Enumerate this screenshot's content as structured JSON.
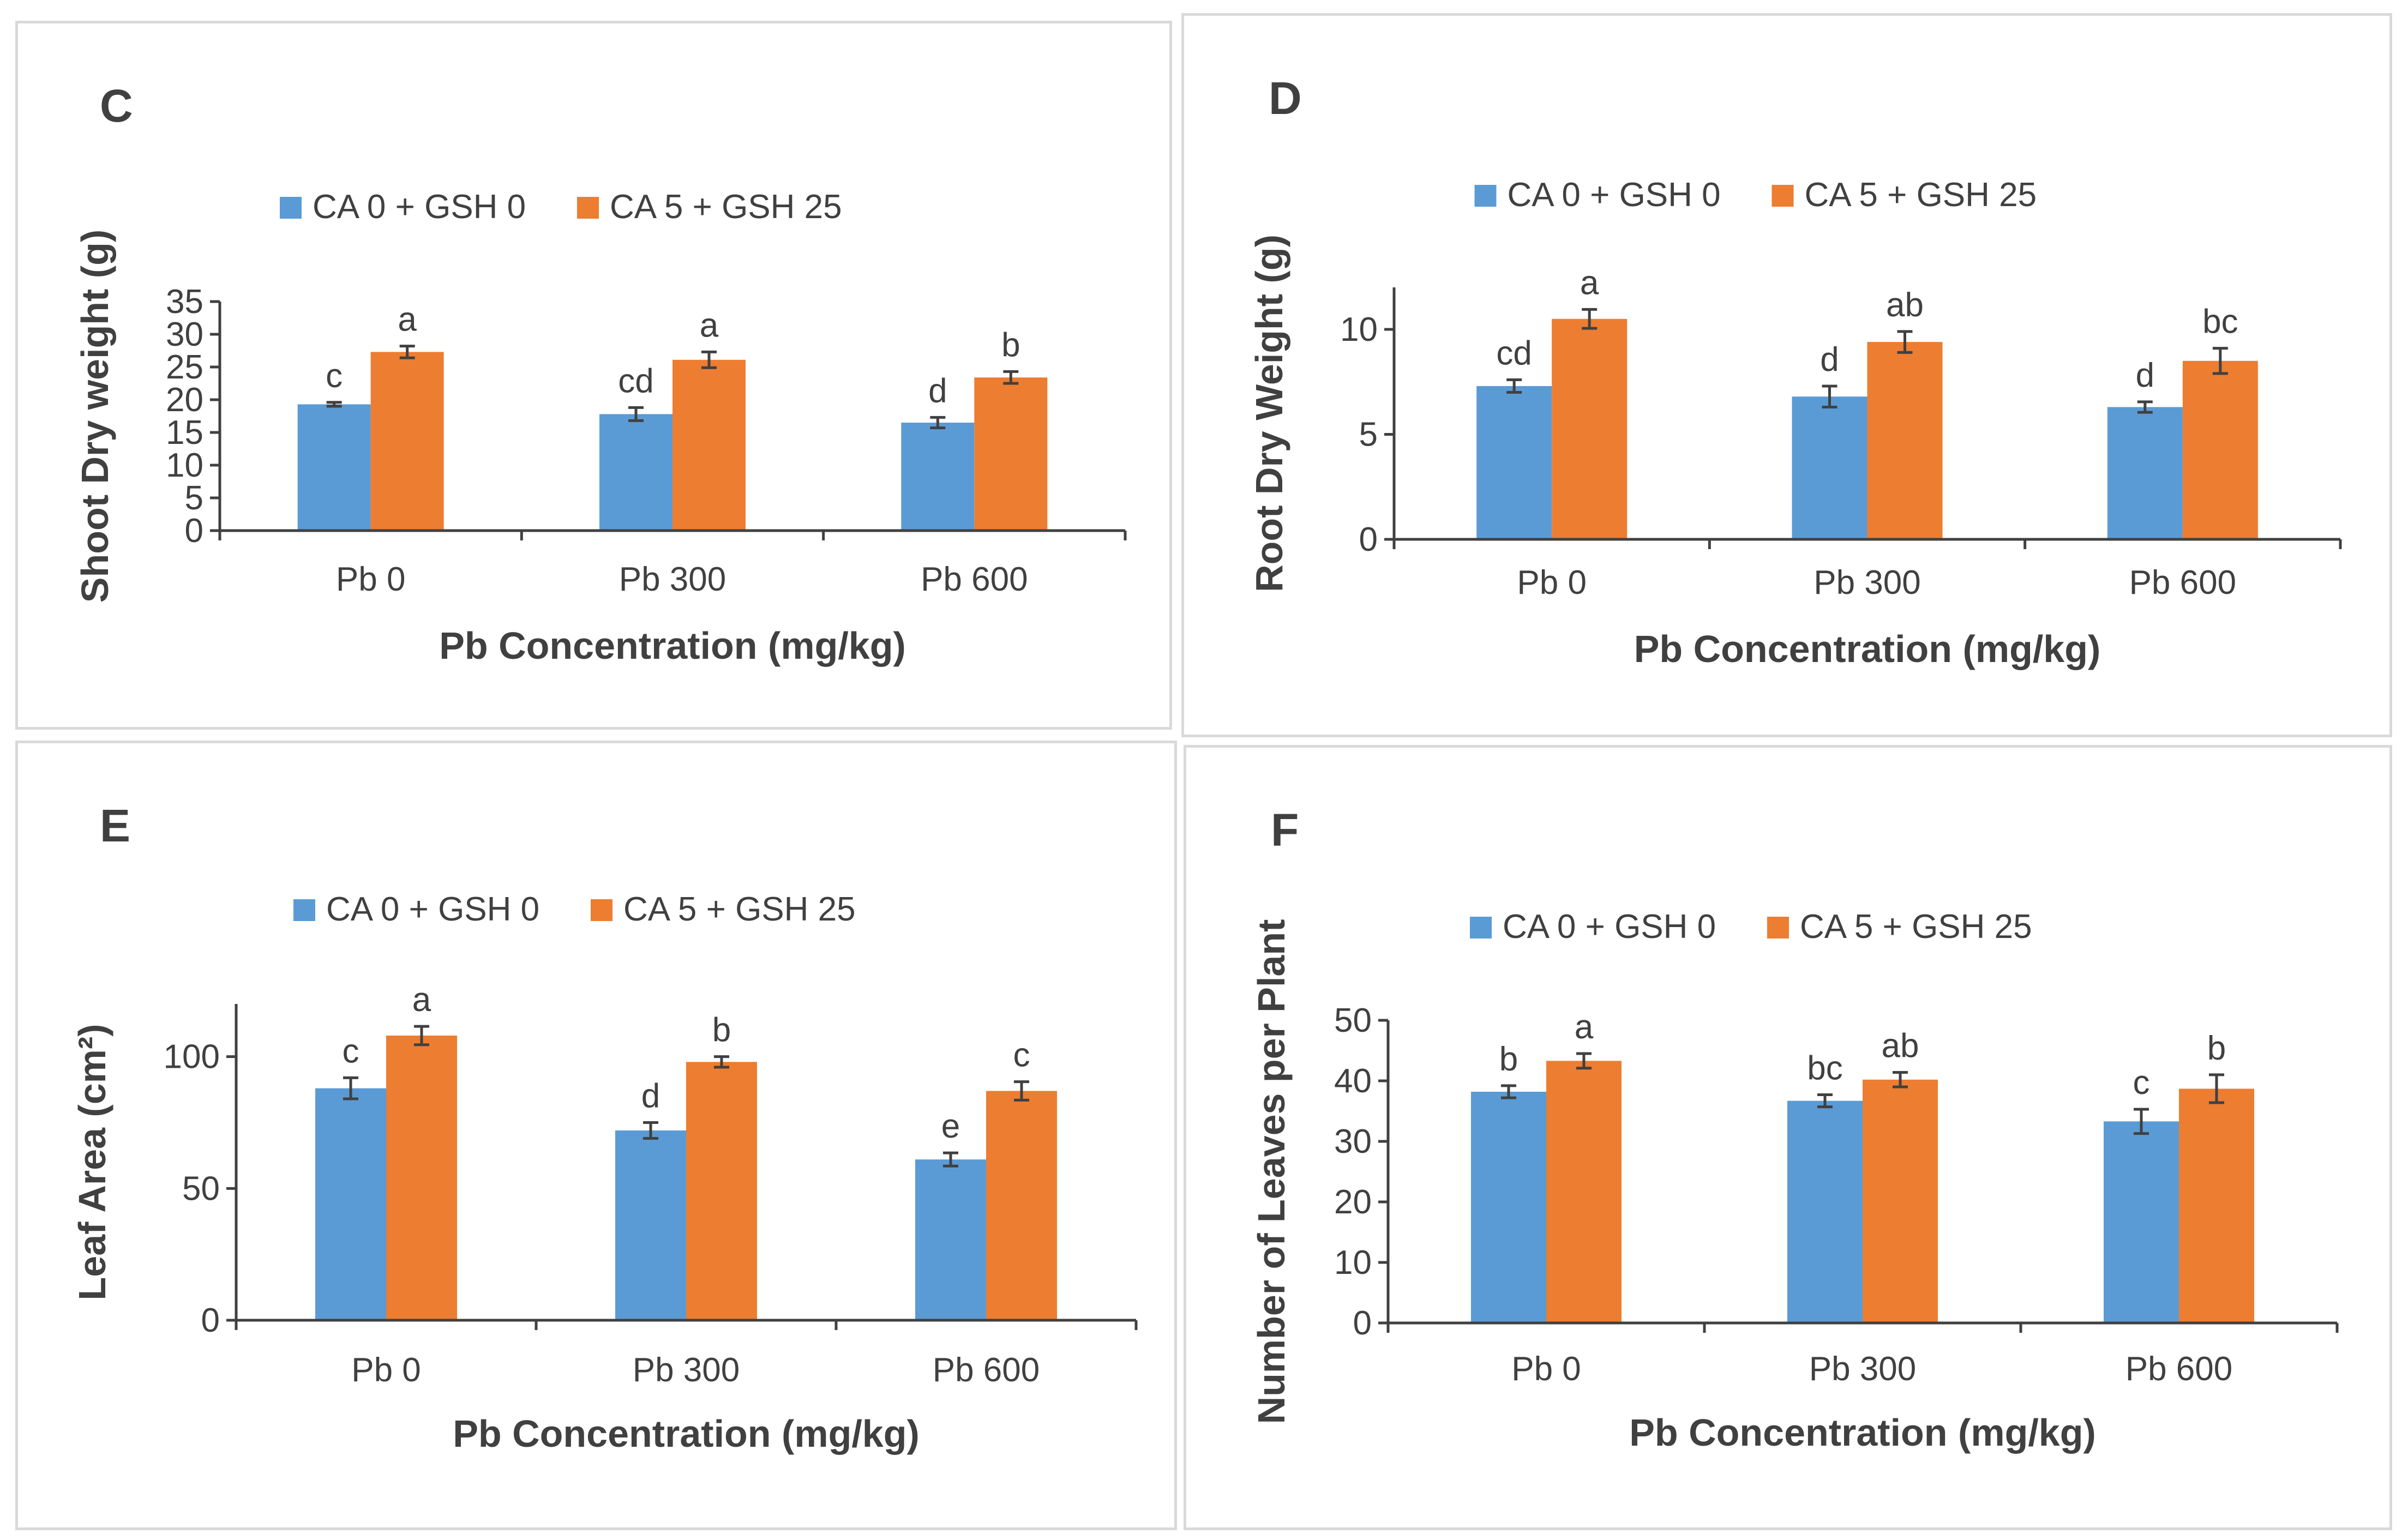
{
  "legend_labels": [
    "CA 0 + GSH 0",
    "CA 5 + GSH 25"
  ],
  "colors": {
    "series1": "#5b9bd5",
    "series2": "#ed7d31",
    "axis": "#404040",
    "text": "#404040",
    "error": "#404040"
  },
  "chart_data": [
    {
      "panel": "C",
      "type": "bar",
      "ylabel": "Shoot Dry weight (g)",
      "xlabel": "Pb Concentration (mg/kg)",
      "categories": [
        "Pb 0",
        "Pb 300",
        "Pb 600"
      ],
      "ylim": [
        0,
        35
      ],
      "yticks": [
        0,
        5,
        10,
        15,
        20,
        25,
        30,
        35
      ],
      "series": [
        {
          "name": "CA 0 + GSH 0",
          "values": [
            19.3,
            17.8,
            16.5
          ],
          "errors": [
            0.3,
            1.0,
            0.8
          ],
          "letters": [
            "c",
            "cd",
            "d"
          ]
        },
        {
          "name": "CA 5 + GSH 25",
          "values": [
            27.3,
            26.1,
            23.4
          ],
          "errors": [
            0.9,
            1.2,
            0.9
          ],
          "letters": [
            "a",
            "a",
            "b"
          ]
        }
      ]
    },
    {
      "panel": "D",
      "type": "bar",
      "ylabel": "Root Dry Weight (g)",
      "xlabel": "Pb Concentration (mg/kg)",
      "categories": [
        "Pb 0",
        "Pb 300",
        "Pb 600"
      ],
      "ylim": [
        0,
        12
      ],
      "yticks": [
        0,
        5,
        10
      ],
      "series": [
        {
          "name": "CA 0 + GSH 0",
          "values": [
            7.3,
            6.8,
            6.3
          ],
          "errors": [
            0.3,
            0.5,
            0.25
          ],
          "letters": [
            "cd",
            "d",
            "d"
          ]
        },
        {
          "name": "CA 5 + GSH 25",
          "values": [
            10.5,
            9.4,
            8.5
          ],
          "errors": [
            0.45,
            0.5,
            0.6
          ],
          "letters": [
            "a",
            "ab",
            "bc"
          ]
        }
      ]
    },
    {
      "panel": "E",
      "type": "bar",
      "ylabel": "Leaf Area (cm²)",
      "xlabel": "Pb Concentration (mg/kg)",
      "categories": [
        "Pb 0",
        "Pb 300",
        "Pb 600"
      ],
      "ylim": [
        0,
        120
      ],
      "yticks": [
        0,
        50,
        100
      ],
      "series": [
        {
          "name": "CA 0 + GSH 0",
          "values": [
            88,
            72,
            61
          ],
          "errors": [
            4,
            3,
            2.5
          ],
          "letters": [
            "c",
            "d",
            "e"
          ]
        },
        {
          "name": "CA 5 + GSH 25",
          "values": [
            108,
            98,
            87
          ],
          "errors": [
            3.5,
            2,
            3.5
          ],
          "letters": [
            "a",
            "b",
            "c"
          ]
        }
      ]
    },
    {
      "panel": "F",
      "type": "bar",
      "ylabel": "Number of Leaves per Plant",
      "xlabel": "Pb Concentration (mg/kg)",
      "categories": [
        "Pb 0",
        "Pb 300",
        "Pb 600"
      ],
      "ylim": [
        0,
        50
      ],
      "yticks": [
        0,
        10,
        20,
        30,
        40,
        50
      ],
      "series": [
        {
          "name": "CA 0 + GSH 0",
          "values": [
            38.2,
            36.7,
            33.3
          ],
          "errors": [
            1.0,
            1.0,
            2.0
          ],
          "letters": [
            "b",
            "bc",
            "c"
          ]
        },
        {
          "name": "CA 5 + GSH 25",
          "values": [
            43.3,
            40.2,
            38.7
          ],
          "errors": [
            1.2,
            1.2,
            2.3
          ],
          "letters": [
            "a",
            "ab",
            "b"
          ]
        }
      ]
    }
  ]
}
